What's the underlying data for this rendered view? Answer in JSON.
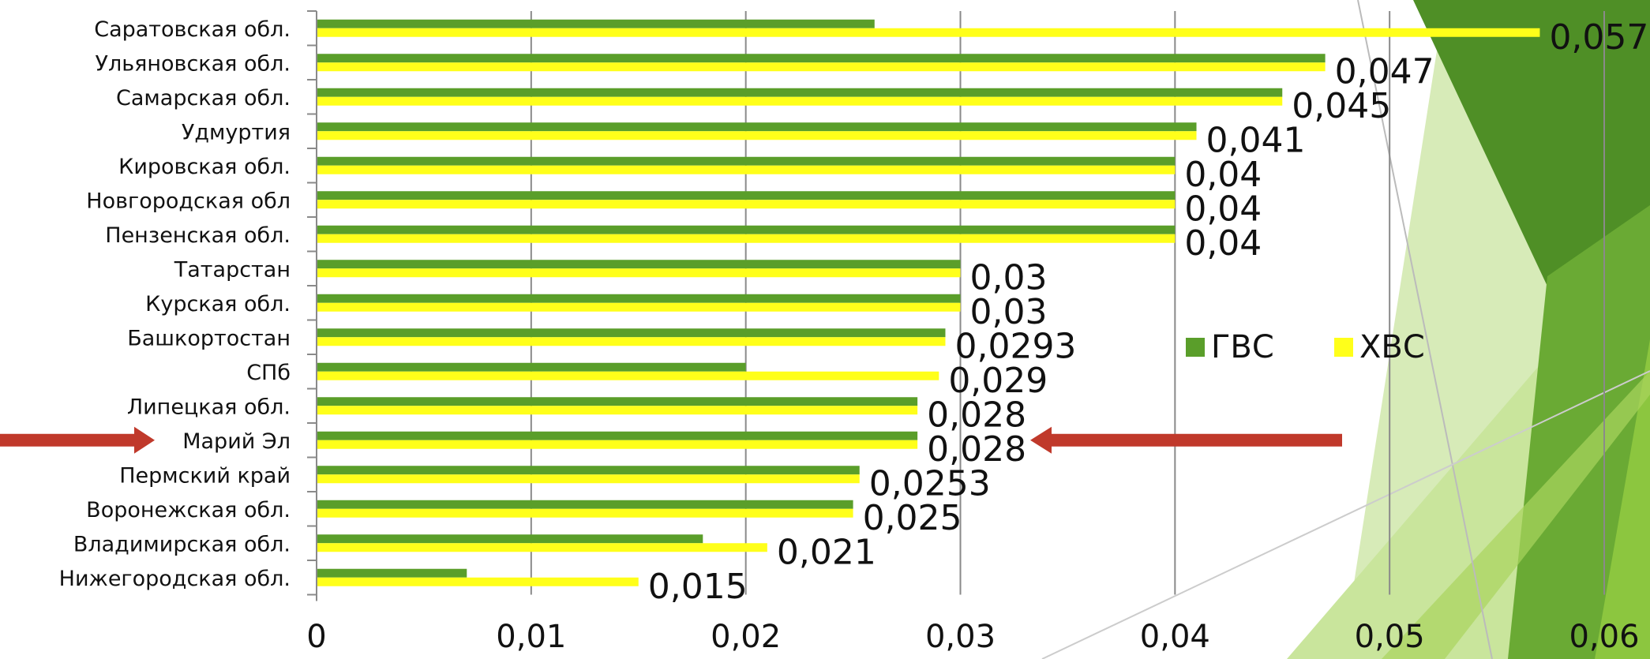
{
  "chart_data": {
    "type": "bar",
    "orientation": "horizontal",
    "categories": [
      "Саратовская обл.",
      "Ульяновская обл.",
      "Самарская обл.",
      "Удмуртия",
      "Кировская обл.",
      "Новгородская обл",
      "Пензенская обл.",
      "Татарстан",
      "Курская обл.",
      "Башкортостан",
      "СПб",
      "Липецкая обл.",
      "Марий Эл",
      "Пермский край",
      "Воронежская обл.",
      "Владимирская обл.",
      "Нижегородская обл."
    ],
    "series": [
      {
        "name": "ГВС",
        "color": "#5a9e2a",
        "values": [
          0.026,
          0.047,
          0.045,
          0.041,
          0.04,
          0.04,
          0.04,
          0.03,
          0.03,
          0.0293,
          0.02,
          0.028,
          0.028,
          0.0253,
          0.025,
          0.018,
          0.007
        ]
      },
      {
        "name": "ХВС",
        "color": "#ffff1a",
        "values": [
          0.057,
          0.047,
          0.045,
          0.041,
          0.04,
          0.04,
          0.04,
          0.03,
          0.03,
          0.0293,
          0.029,
          0.028,
          0.028,
          0.0253,
          0.025,
          0.021,
          0.015
        ]
      }
    ],
    "data_labels": [
      "0,057",
      "0,047",
      "0,045",
      "0,041",
      "0,04",
      "0,04",
      "0,04",
      "0,03",
      "0,03",
      "0,0293",
      "0,029",
      "0,028",
      "0,028",
      "0,0253",
      "0,025",
      "0,021",
      "0,015"
    ],
    "xlim": [
      0,
      0.06
    ],
    "xticks": [
      0,
      0.01,
      0.02,
      0.03,
      0.04,
      0.05,
      0.06
    ],
    "xtick_labels": [
      "0",
      "0,01",
      "0,02",
      "0,03",
      "0,04",
      "0,05",
      "0,06"
    ],
    "grid": "vertical",
    "legend_position": "right-middle",
    "highlighted_category": "Марий Эл",
    "arrow_color": "#c0392b"
  }
}
